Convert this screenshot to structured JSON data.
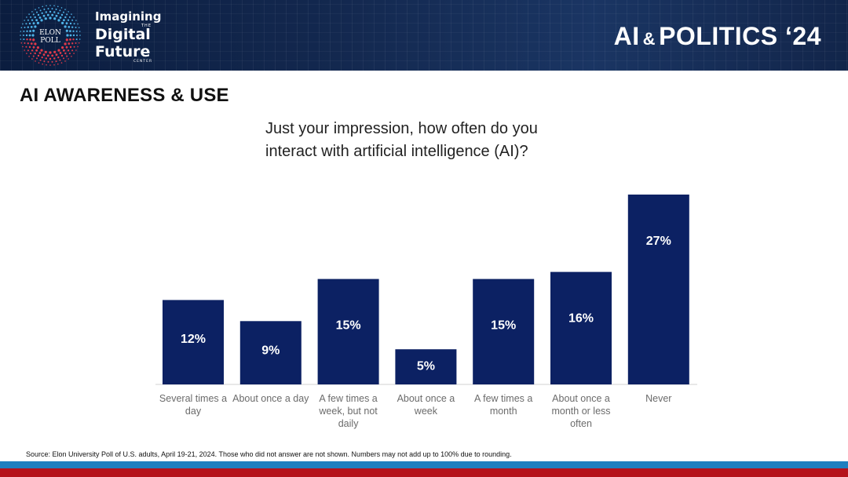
{
  "header": {
    "brand_line1": "Imagining",
    "brand_the": "THE",
    "brand_line2": "Digital",
    "brand_line3": "Future",
    "brand_center": "CENTER",
    "logo_line1": "ELON",
    "logo_line2": "POLL",
    "deck_title_part1": "AI",
    "deck_title_amp": "&",
    "deck_title_part2": "POLITICS ‘24"
  },
  "section_title": "AI AWARENESS & USE",
  "chart_data": {
    "type": "bar",
    "title_lines": [
      "Just your impression, how often do you",
      "interact with artificial intelligence (AI)?"
    ],
    "categories": [
      [
        "Several times a",
        "day"
      ],
      [
        "About once a day"
      ],
      [
        "A few times a",
        "week, but not",
        "daily"
      ],
      [
        "About once a",
        "week"
      ],
      [
        "A few times a",
        "month"
      ],
      [
        "About once a",
        "month or less",
        "often"
      ],
      [
        "Never"
      ]
    ],
    "values": [
      12,
      9,
      15,
      5,
      15,
      16,
      27
    ],
    "value_labels": [
      "12%",
      "9%",
      "15%",
      "5%",
      "15%",
      "16%",
      "27%"
    ],
    "unit": "%",
    "ylim": [
      0,
      27
    ],
    "grid": false,
    "legend": "none",
    "bar_color": "#0c2163"
  },
  "source": "Source: Elon University Poll of U.S. adults, April 19-21, 2024. Those who did not answer are not shown. Numbers may not add up to 100% due to rounding.",
  "colors": {
    "header_bg": "#13284f",
    "footer_blue": "#1f7fbf",
    "footer_red": "#b5121b"
  }
}
